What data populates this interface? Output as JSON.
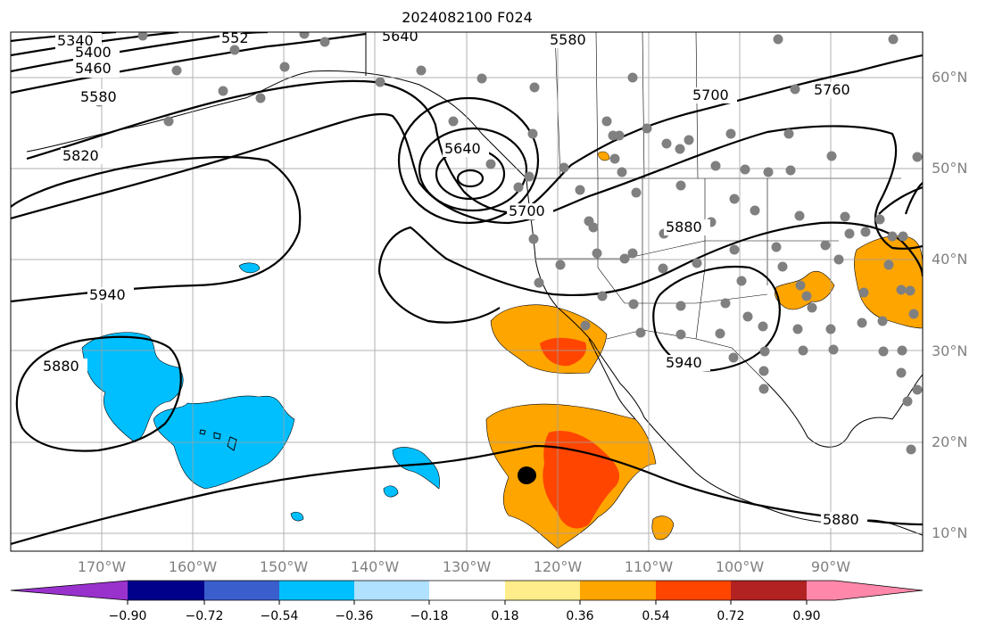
{
  "title": "2024082100 F024",
  "latitude_labels": [
    "60°N",
    "50°N",
    "40°N",
    "30°N",
    "20°N",
    "10°N"
  ],
  "longitude_labels": [
    "170°W",
    "160°W",
    "150°W",
    "140°W",
    "130°W",
    "120°W",
    "110°W",
    "100°W",
    "90°W"
  ],
  "contour_labels": [
    "5340",
    "5400",
    "5460",
    "552",
    "5580",
    "5640",
    "5580",
    "5700",
    "5760",
    "5820",
    "5640",
    "5700",
    "5880",
    "5940",
    "5880",
    "5940",
    "5880"
  ],
  "colorbar": {
    "ticks": [
      "−0.90",
      "−0.72",
      "−0.54",
      "−0.36",
      "−0.18",
      "0.18",
      "0.36",
      "0.54",
      "0.72",
      "0.90"
    ],
    "colors": [
      "#9932CC",
      "#00008B",
      "#3A5FCD",
      "#00BFFF",
      "#B0E2FF",
      "#FFFFFF",
      "#FFEC8B",
      "#FFA500",
      "#FF4500",
      "#B22222",
      "#FF88AA"
    ]
  }
}
